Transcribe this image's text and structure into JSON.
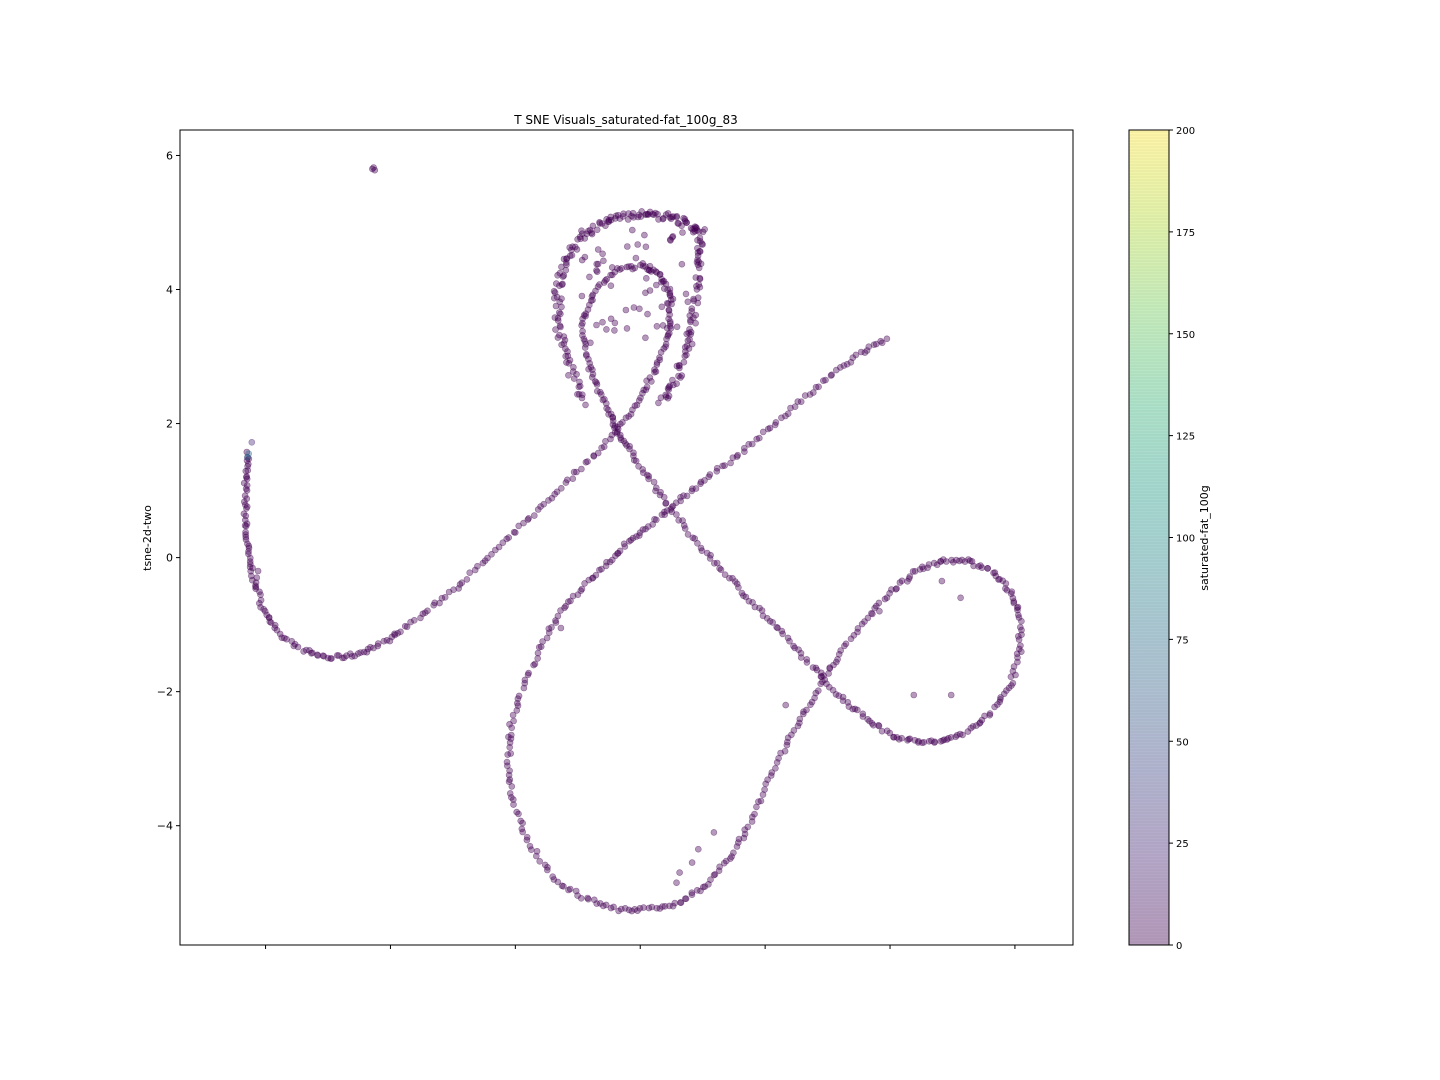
{
  "chart_data": {
    "type": "scatter",
    "title": "T SNE Visuals_saturated-fat_100g_83",
    "xlabel": "",
    "ylabel": "tsne-2d-two",
    "xlim": [
      -5.2,
      9.1
    ],
    "ylim": [
      -5.78,
      6.38
    ],
    "yticks": [
      {
        "value": -4,
        "label": "−4"
      },
      {
        "value": -2,
        "label": "−2"
      },
      {
        "value": 0,
        "label": "0"
      },
      {
        "value": 2,
        "label": "2"
      },
      {
        "value": 4,
        "label": "4"
      },
      {
        "value": 6,
        "label": "6"
      }
    ],
    "xticks_unlabeled": [
      -3.83,
      -1.83,
      0.17,
      2.17,
      4.17,
      6.17,
      8.17
    ],
    "grid": false,
    "alpha": 0.4,
    "marker_color_dominant": "#440154",
    "colorbar": {
      "label": "saturated-fat_100g",
      "min": 0,
      "max": 200,
      "ticks": [
        0,
        25,
        50,
        75,
        100,
        125,
        150,
        175,
        200
      ],
      "colormap": "viridis",
      "colors": [
        "#440154",
        "#482878",
        "#3e4989",
        "#31688e",
        "#26828e",
        "#1f9e89",
        "#35b779",
        "#6ece58",
        "#b5de2b",
        "#fde725"
      ]
    },
    "series": [
      {
        "values_color": 5,
        "path_points": [
          [
            -4.1,
            1.55
          ],
          [
            -4.15,
            1.2
          ],
          [
            -4.15,
            0.8
          ],
          [
            -4.15,
            0.4
          ],
          [
            -4.1,
            0.0
          ],
          [
            -4.0,
            -0.4
          ],
          [
            -3.85,
            -0.8
          ],
          [
            -3.6,
            -1.15
          ],
          [
            -3.2,
            -1.4
          ],
          [
            -2.8,
            -1.5
          ],
          [
            -2.4,
            -1.45
          ],
          [
            -2.0,
            -1.3
          ],
          [
            -1.6,
            -1.05
          ],
          [
            -1.1,
            -0.7
          ],
          [
            -0.6,
            -0.3
          ],
          [
            -0.1,
            0.15
          ],
          [
            0.4,
            0.6
          ],
          [
            0.9,
            1.05
          ],
          [
            1.4,
            1.5
          ],
          [
            1.8,
            1.9
          ],
          [
            2.1,
            2.3
          ],
          [
            2.35,
            2.7
          ],
          [
            2.55,
            3.1
          ],
          [
            2.65,
            3.5
          ],
          [
            2.65,
            3.9
          ],
          [
            2.5,
            4.2
          ],
          [
            2.2,
            4.35
          ],
          [
            1.8,
            4.3
          ],
          [
            1.45,
            4.0
          ],
          [
            1.25,
            3.5
          ],
          [
            1.3,
            3.0
          ],
          [
            1.45,
            2.6
          ],
          [
            1.65,
            2.2
          ],
          [
            1.8,
            1.9
          ],
          [
            2.0,
            1.6
          ],
          [
            2.3,
            1.2
          ],
          [
            2.6,
            0.8
          ],
          [
            3.0,
            0.3
          ],
          [
            3.4,
            -0.1
          ],
          [
            3.8,
            -0.5
          ],
          [
            4.2,
            -0.9
          ],
          [
            4.6,
            -1.3
          ],
          [
            5.0,
            -1.7
          ],
          [
            5.4,
            -2.1
          ],
          [
            5.8,
            -2.4
          ],
          [
            6.2,
            -2.65
          ],
          [
            6.6,
            -2.75
          ],
          [
            7.0,
            -2.75
          ],
          [
            7.4,
            -2.6
          ],
          [
            7.8,
            -2.3
          ],
          [
            8.1,
            -1.9
          ],
          [
            8.25,
            -1.4
          ],
          [
            8.25,
            -0.9
          ],
          [
            8.1,
            -0.5
          ],
          [
            7.8,
            -0.2
          ],
          [
            7.4,
            -0.05
          ],
          [
            7.0,
            -0.05
          ],
          [
            6.6,
            -0.2
          ],
          [
            6.2,
            -0.5
          ],
          [
            5.8,
            -0.9
          ],
          [
            5.4,
            -1.4
          ],
          [
            5.1,
            -1.8
          ],
          [
            4.8,
            -2.3
          ],
          [
            4.5,
            -2.8
          ],
          [
            4.2,
            -3.4
          ],
          [
            3.9,
            -4.0
          ],
          [
            3.6,
            -4.5
          ],
          [
            3.2,
            -4.9
          ],
          [
            2.8,
            -5.15
          ],
          [
            2.3,
            -5.25
          ],
          [
            1.8,
            -5.25
          ],
          [
            1.3,
            -5.1
          ],
          [
            0.8,
            -4.8
          ],
          [
            0.4,
            -4.3
          ],
          [
            0.15,
            -3.7
          ],
          [
            0.05,
            -3.1
          ],
          [
            0.1,
            -2.5
          ],
          [
            0.3,
            -1.9
          ],
          [
            0.6,
            -1.3
          ],
          [
            0.9,
            -0.8
          ],
          [
            1.3,
            -0.4
          ],
          [
            1.7,
            -0.05
          ],
          [
            2.0,
            0.25
          ],
          [
            2.4,
            0.55
          ],
          [
            2.8,
            0.85
          ],
          [
            3.2,
            1.15
          ],
          [
            3.7,
            1.5
          ],
          [
            4.2,
            1.9
          ],
          [
            4.7,
            2.3
          ],
          [
            5.2,
            2.7
          ],
          [
            5.7,
            3.05
          ],
          [
            6.15,
            3.28
          ]
        ]
      },
      {
        "outer_lobe_points": [
          [
            1.3,
            2.3
          ],
          [
            1.0,
            2.9
          ],
          [
            0.85,
            3.5
          ],
          [
            0.85,
            4.0
          ],
          [
            1.0,
            4.5
          ],
          [
            1.3,
            4.85
          ],
          [
            1.7,
            5.05
          ],
          [
            2.1,
            5.12
          ],
          [
            2.5,
            5.1
          ],
          [
            2.9,
            5.0
          ],
          [
            3.15,
            4.85
          ],
          [
            3.1,
            4.4
          ],
          [
            3.05,
            3.8
          ],
          [
            2.95,
            3.2
          ],
          [
            2.75,
            2.7
          ],
          [
            2.5,
            2.3
          ]
        ]
      },
      {
        "isolated_cluster": [
          [
            -2.1,
            5.82
          ],
          [
            -2.08,
            5.78
          ],
          [
            -2.12,
            5.8
          ]
        ]
      }
    ]
  }
}
